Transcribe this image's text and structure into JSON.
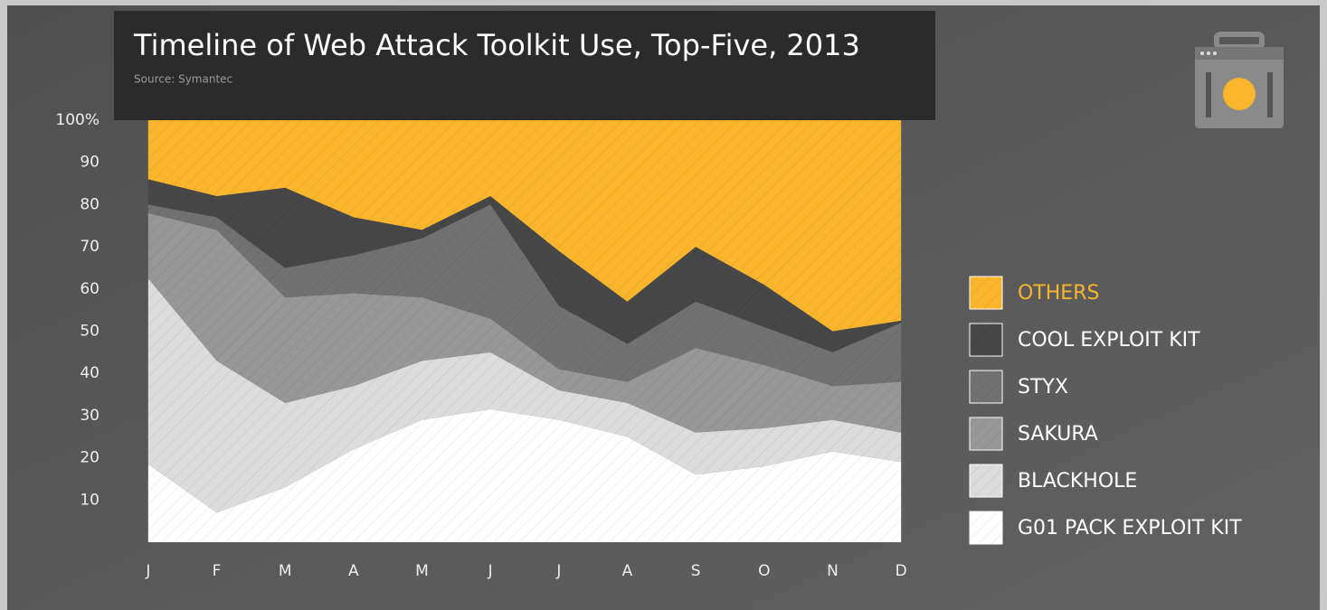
{
  "chart_data": {
    "type": "stacked_area",
    "title": "Timeline of Web Attack Toolkit Use, Top-Five, 2013",
    "subtitle": "Source: Symantec",
    "categories": [
      "J",
      "F",
      "M",
      "A",
      "M",
      "J",
      "J",
      "A",
      "S",
      "O",
      "N",
      "D"
    ],
    "ylim": [
      0,
      100
    ],
    "yticks": [
      10,
      20,
      30,
      40,
      50,
      60,
      70,
      80,
      90,
      {
        "value": 100,
        "label": "100%"
      }
    ],
    "series": [
      {
        "name": "G01 PACK EXPLOIT KIT",
        "color": "#ffffff",
        "values": [
          18.5,
          7,
          13,
          22,
          29,
          31.5,
          29,
          25,
          16,
          18,
          21.5,
          19
        ]
      },
      {
        "name": "BLACKHOLE",
        "color": "#dcdcdc",
        "values": [
          44,
          36,
          20,
          15,
          14,
          13.5,
          7,
          8,
          10,
          9,
          7.5,
          7
        ]
      },
      {
        "name": "SAKURA",
        "color": "#979797",
        "values": [
          15.5,
          31,
          25,
          22,
          15,
          8,
          5,
          5,
          20,
          15,
          8,
          12
        ]
      },
      {
        "name": "STYX",
        "color": "#717171",
        "values": [
          2,
          3,
          7,
          9,
          14,
          27,
          15,
          9,
          11,
          9,
          8,
          14
        ]
      },
      {
        "name": "COOL EXPLOIT KIT",
        "color": "#474747",
        "values": [
          6,
          5,
          19,
          9,
          2,
          2,
          13,
          10,
          13,
          10,
          5,
          0.5
        ]
      },
      {
        "name": "OTHERS",
        "color": "#f9b52c",
        "values": [
          14,
          18,
          16,
          23,
          26,
          18,
          31,
          43,
          30,
          39,
          50,
          47.5
        ]
      }
    ]
  }
}
